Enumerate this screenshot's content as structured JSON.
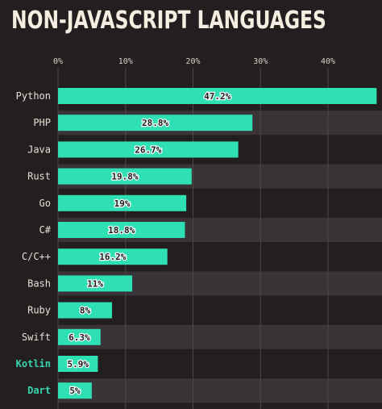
{
  "chart_data": {
    "type": "bar",
    "orientation": "horizontal",
    "title": "NON-JAVASCRIPT LANGUAGES",
    "categories": [
      "Python",
      "PHP",
      "Java",
      "Rust",
      "Go",
      "C#",
      "C/C++",
      "Bash",
      "Ruby",
      "Swift",
      "Kotlin",
      "Dart"
    ],
    "values": [
      47.2,
      28.8,
      26.7,
      19.8,
      19,
      18.8,
      16.2,
      11,
      8,
      6.3,
      5.9,
      5
    ],
    "value_labels": [
      "47.2%",
      "28.8%",
      "26.7%",
      "19.8%",
      "19%",
      "18.8%",
      "16.2%",
      "11%",
      "8%",
      "6.3%",
      "5.9%",
      "5%"
    ],
    "highlighted_categories": [
      "Kotlin",
      "Dart"
    ],
    "xticks": [
      0,
      10,
      20,
      30,
      40
    ],
    "xtick_labels": [
      "0%",
      "10%",
      "20%",
      "30%",
      "40%"
    ],
    "xlim": [
      0,
      48
    ],
    "xlabel": "",
    "ylabel": "",
    "grid": true,
    "legend": "none",
    "colors": {
      "background": "#231f20",
      "bar": "#2fe0b4",
      "row_band": "#3a3439",
      "grid": "#4d4649",
      "label": "#e6e0d4",
      "highlight_label": "#36d7b0",
      "title": "#f5eee1"
    }
  }
}
